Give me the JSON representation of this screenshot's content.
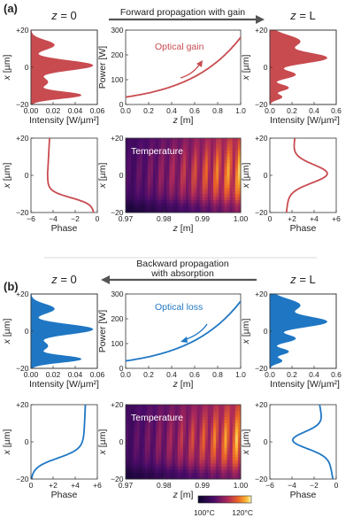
{
  "colors": {
    "gain": "#c84b50",
    "loss": "#1f77c4",
    "arrow": "#555555"
  },
  "panels": [
    {
      "label": "(a)",
      "left_header": "z = 0",
      "right_header": "z = L",
      "arrow_text_lines": [
        "Forward propagation with gain"
      ],
      "arrow_direction": "right",
      "color": "gain",
      "intensity_left": {
        "xlabel": "Intensity [W/µm²]",
        "ylabel": "x [µm]",
        "xticks": [
          "0.00",
          "0.02",
          "0.04",
          "0.06"
        ],
        "yticks": [
          "+20",
          "0",
          "−20"
        ],
        "xmax": 0.06
      },
      "power": {
        "ylabel": "Power [W]",
        "xlabel": "z [m]",
        "annotation": "Optical gain",
        "xticks": [
          "0.0",
          "0.2",
          "0.4",
          "0.6",
          "0.8",
          "1.0"
        ],
        "yticks": [
          "300",
          "200",
          "100",
          "0"
        ],
        "xlim": [
          0,
          1
        ],
        "ylim": [
          0,
          300
        ]
      },
      "intensity_right": {
        "xlabel": "Intensity [W/µm²]",
        "xticks": [
          "0.0",
          "0.2",
          "0.4",
          "0.6"
        ],
        "yticks": [
          "+20",
          "0",
          "−20"
        ],
        "xmax": 0.6
      },
      "phase_left": {
        "xlabel": "Phase",
        "ylabel": "x [µm]",
        "xticks": [
          "−6",
          "−4",
          "−2",
          "0"
        ],
        "yticks": [
          "+20",
          "0",
          "−20"
        ]
      },
      "temperature": {
        "title": "Temperature",
        "xlabel": "z [m]",
        "ylabel": "x [µm]",
        "xticks": [
          "0.97",
          "0.98",
          "0.99",
          "1.00"
        ],
        "yticks": [
          "+20",
          "0",
          "−20"
        ]
      },
      "phase_right": {
        "xlabel": "Phase",
        "xticks": [
          "0",
          "+2",
          "+4",
          "+6"
        ],
        "yticks": [
          "+20",
          "0",
          "−20"
        ]
      }
    },
    {
      "label": "(b)",
      "left_header": "z = 0",
      "right_header": "z = L",
      "arrow_text_lines": [
        "Backward propagation",
        "with absorption"
      ],
      "arrow_direction": "left",
      "color": "loss",
      "intensity_left": {
        "xlabel": "Intensity [W/µm²]",
        "ylabel": "x [µm]",
        "xticks": [
          "0.00",
          "0.02",
          "0.04",
          "0.06"
        ],
        "yticks": [
          "+20",
          "0",
          "−20"
        ],
        "xmax": 0.06
      },
      "power": {
        "ylabel": "Power [W]",
        "xlabel": "z [m]",
        "annotation": "Optical loss",
        "xticks": [
          "0.0",
          "0.2",
          "0.4",
          "0.6",
          "0.8",
          "1.0"
        ],
        "yticks": [
          "300",
          "200",
          "100",
          "0"
        ],
        "xlim": [
          0,
          1
        ],
        "ylim": [
          0,
          300
        ]
      },
      "intensity_right": {
        "xlabel": "Intensity [W/µm²]",
        "xticks": [
          "0.0",
          "0.2",
          "0.4",
          "0.6"
        ],
        "yticks": [
          "+20",
          "0",
          "−20"
        ],
        "xmax": 0.6
      },
      "phase_left": {
        "xlabel": "Phase",
        "ylabel": "x [µm]",
        "xticks": [
          "0",
          "+2",
          "+4",
          "+6"
        ],
        "yticks": [
          "+20",
          "0",
          "−20"
        ]
      },
      "temperature": {
        "title": "Temperature",
        "xlabel": "z [m]",
        "ylabel": "x [µm]",
        "xticks": [
          "0.97",
          "0.98",
          "0.99",
          "1.00"
        ],
        "yticks": [
          "+20",
          "0",
          "−20"
        ]
      },
      "phase_right": {
        "xlabel": "Phase",
        "xticks": [
          "−6",
          "−4",
          "−2",
          "0"
        ],
        "yticks": [
          "+20",
          "0",
          "−20"
        ]
      }
    }
  ],
  "colorbar": {
    "min_label": "100°C",
    "max_label": "120°C"
  }
}
